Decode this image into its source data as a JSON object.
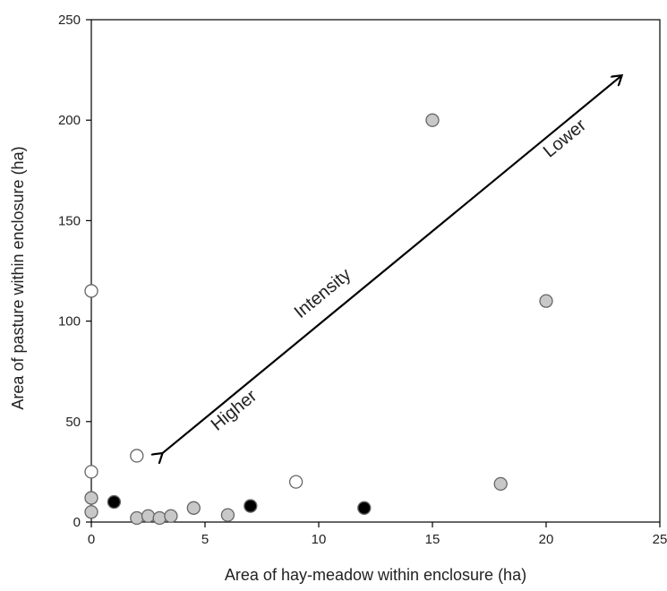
{
  "chart_data": {
    "type": "scatter",
    "title": "",
    "xlabel": "Area of hay-meadow within enclosure (ha)",
    "ylabel": "Area of pasture within enclosure (ha)",
    "xlim": [
      0,
      25
    ],
    "ylim": [
      0,
      250
    ],
    "xticks": [
      0,
      5,
      10,
      15,
      20,
      25
    ],
    "yticks": [
      0,
      50,
      100,
      150,
      200,
      250
    ],
    "grid": false,
    "legend": "none",
    "series": [
      {
        "fill": "#ffffff",
        "points": [
          {
            "x": 0,
            "y": 115
          },
          {
            "x": 0,
            "y": 25
          },
          {
            "x": 2,
            "y": 33
          },
          {
            "x": 9,
            "y": 20
          }
        ]
      },
      {
        "fill": "#c8c8c8",
        "points": [
          {
            "x": 15,
            "y": 200
          },
          {
            "x": 20,
            "y": 110
          },
          {
            "x": 18,
            "y": 19
          },
          {
            "x": 0,
            "y": 12
          },
          {
            "x": 0,
            "y": 5
          },
          {
            "x": 2,
            "y": 2
          },
          {
            "x": 2.5,
            "y": 3
          },
          {
            "x": 3,
            "y": 2
          },
          {
            "x": 3.5,
            "y": 3
          },
          {
            "x": 4.5,
            "y": 7
          },
          {
            "x": 6,
            "y": 3.5
          }
        ]
      },
      {
        "fill": "#000000",
        "points": [
          {
            "x": 1,
            "y": 10
          },
          {
            "x": 7,
            "y": 8
          },
          {
            "x": 12,
            "y": 7
          }
        ]
      }
    ],
    "annotations": {
      "arrow": {
        "from": {
          "x": 3.1,
          "y": 34
        },
        "to": {
          "x": 23.3,
          "y": 222
        }
      },
      "label_center": "Intensity",
      "label_high": "Higher",
      "label_low": "Lower"
    }
  }
}
